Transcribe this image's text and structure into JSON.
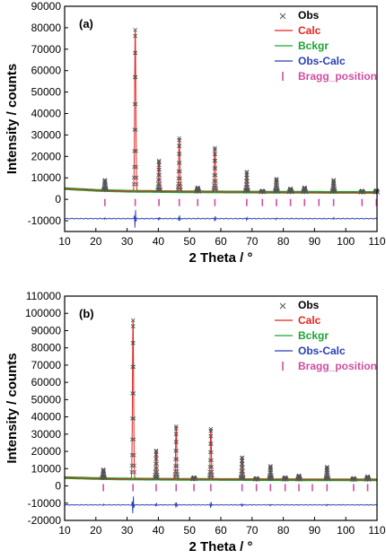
{
  "colors": {
    "obs": "#555555",
    "calc": "#e8231f",
    "bckgr": "#1fa334",
    "obs_calc": "#2a3fb5",
    "bragg": "#d04da0"
  },
  "chart_data": [
    {
      "type": "line",
      "panel_label": "(a)",
      "xlabel": "2 Theta / °",
      "ylabel": "Intensity / counts",
      "xlim": [
        10,
        110
      ],
      "ylim": [
        -15000,
        90000
      ],
      "xticks": [
        "10",
        "20",
        "30",
        "40",
        "50",
        "60",
        "70",
        "80",
        "90",
        "100",
        "110"
      ],
      "yticks": [
        "-10000",
        "0",
        "10000",
        "20000",
        "30000",
        "40000",
        "50000",
        "60000",
        "70000",
        "80000",
        "90000"
      ],
      "legend": [
        "Obs",
        "Calc",
        "Bckgr",
        "Obs-Calc",
        "Bragg_position"
      ],
      "legend_position": "top-right",
      "background": {
        "x": [
          10,
          20,
          30,
          50,
          80,
          110
        ],
        "y": [
          5000,
          4200,
          3800,
          3500,
          3300,
          3200
        ]
      },
      "peaks": [
        {
          "x": 22.9,
          "y": 9000
        },
        {
          "x": 32.6,
          "y": 79000
        },
        {
          "x": 40.2,
          "y": 18000
        },
        {
          "x": 46.7,
          "y": 28500
        },
        {
          "x": 52.6,
          "y": 5500
        },
        {
          "x": 58.1,
          "y": 24000
        },
        {
          "x": 68.3,
          "y": 12800
        },
        {
          "x": 73.3,
          "y": 4000
        },
        {
          "x": 77.8,
          "y": 9500
        },
        {
          "x": 82.3,
          "y": 5000
        },
        {
          "x": 86.8,
          "y": 5500
        },
        {
          "x": 96.1,
          "y": 9000
        },
        {
          "x": 105.2,
          "y": 4000
        },
        {
          "x": 109.8,
          "y": 4200
        }
      ],
      "diff_offset": -9000,
      "bragg_y": -1500,
      "bragg_positions": [
        22.9,
        32.6,
        40.2,
        46.7,
        52.6,
        58.1,
        68.3,
        73.3,
        77.8,
        82.3,
        86.8,
        91.4,
        96.1,
        105.2,
        109.8
      ]
    },
    {
      "type": "line",
      "panel_label": "(b)",
      "xlabel": "2 Theta / °",
      "ylabel": "Intensity / counts",
      "xlim": [
        10,
        110
      ],
      "ylim": [
        -20000,
        110000
      ],
      "xticks": [
        "10",
        "20",
        "30",
        "40",
        "50",
        "60",
        "70",
        "80",
        "90",
        "100",
        "110"
      ],
      "yticks": [
        "-20000",
        "-10000",
        "0",
        "10000",
        "20000",
        "30000",
        "40000",
        "50000",
        "60000",
        "70000",
        "80000",
        "90000",
        "100000",
        "110000"
      ],
      "legend": [
        "Obs",
        "Calc",
        "Bckgr",
        "Obs-Calc",
        "Bragg_position"
      ],
      "legend_position": "top-right",
      "background": {
        "x": [
          10,
          20,
          30,
          50,
          80,
          110
        ],
        "y": [
          4800,
          4300,
          4000,
          3800,
          3600,
          3500
        ]
      },
      "peaks": [
        {
          "x": 22.4,
          "y": 9500
        },
        {
          "x": 31.9,
          "y": 96000
        },
        {
          "x": 39.3,
          "y": 20500
        },
        {
          "x": 45.7,
          "y": 34500
        },
        {
          "x": 51.4,
          "y": 5000
        },
        {
          "x": 56.8,
          "y": 33000
        },
        {
          "x": 66.8,
          "y": 16500
        },
        {
          "x": 71.4,
          "y": 4500
        },
        {
          "x": 75.9,
          "y": 11500
        },
        {
          "x": 80.6,
          "y": 5000
        },
        {
          "x": 85.0,
          "y": 6000
        },
        {
          "x": 94.0,
          "y": 11000
        },
        {
          "x": 102.5,
          "y": 4500
        },
        {
          "x": 107.0,
          "y": 5500
        }
      ],
      "diff_offset": -11000,
      "bragg_y": -1000,
      "bragg_positions": [
        22.4,
        31.9,
        39.3,
        45.7,
        51.4,
        56.8,
        66.8,
        71.4,
        75.9,
        80.6,
        85.0,
        89.3,
        94.0,
        102.5,
        107.0
      ]
    }
  ]
}
